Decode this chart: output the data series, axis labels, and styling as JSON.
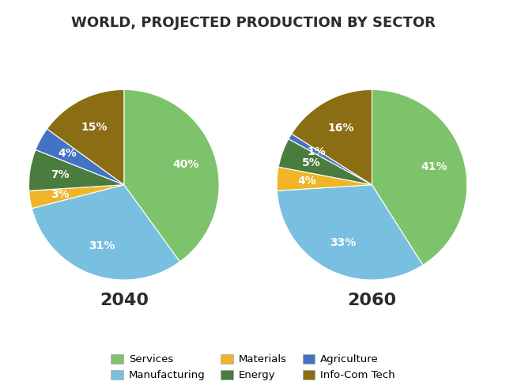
{
  "title": "WORLD, PROJECTED PRODUCTION BY SECTOR",
  "title_fontsize": 13,
  "title_fontweight": "bold",
  "year_labels": [
    "2040",
    "2060"
  ],
  "year_fontsize": 16,
  "year_fontweight": "bold",
  "colors": {
    "Services": "#7dc36b",
    "Manufacturing": "#79c0e0",
    "Materials": "#f0b429",
    "Energy": "#4a7c3f",
    "Agriculture": "#4472c4",
    "Info-Com Tech": "#8b6d14"
  },
  "data_2040_order": [
    "Services",
    "Manufacturing",
    "Materials",
    "Energy",
    "Agriculture",
    "Info-Com Tech"
  ],
  "data_2040_values": [
    40,
    31,
    3,
    7,
    4,
    15
  ],
  "data_2060_order": [
    "Services",
    "Manufacturing",
    "Materials",
    "Energy",
    "Agriculture",
    "Info-Com Tech"
  ],
  "data_2060_values": [
    41,
    33,
    4,
    5,
    1,
    16
  ],
  "legend_labels": [
    "Services",
    "Manufacturing",
    "Materials",
    "Energy",
    "Agriculture",
    "Info-Com Tech"
  ],
  "legend_colors": [
    "#7dc36b",
    "#79c0e0",
    "#f0b429",
    "#4a7c3f",
    "#4472c4",
    "#8b6d14"
  ],
  "background_color": "#ffffff",
  "text_color": "#2b2b2b",
  "label_fontsize": 10,
  "label_color": "white",
  "startangle_2040": 90,
  "startangle_2060": 90,
  "pctdistance": 0.68
}
